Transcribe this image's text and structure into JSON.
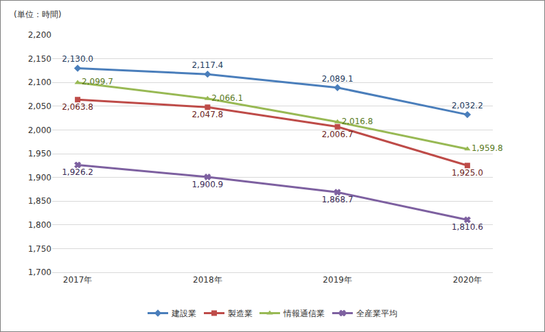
{
  "chart_data": {
    "type": "line",
    "y_label": "(単位：時間)",
    "categories": [
      "2017年",
      "2018年",
      "2019年",
      "2020年"
    ],
    "series": [
      {
        "name": "建設業",
        "color": "#4a7ebb",
        "marker": "diamond",
        "values": [
          2130.0,
          2117.4,
          2089.1,
          2032.2
        ],
        "value_labels": [
          "2,130.0",
          "2,117.4",
          "2,089.1",
          "2,032.2"
        ]
      },
      {
        "name": "製造業",
        "color": "#be4b48",
        "marker": "square",
        "values": [
          2063.8,
          2047.8,
          2006.7,
          1925.0
        ],
        "value_labels": [
          "2,063.8",
          "2,047.8",
          "2,006.7",
          "1,925.0"
        ]
      },
      {
        "name": "情報通信業",
        "color": "#98b954",
        "marker": "triangle-up",
        "values": [
          2099.7,
          2066.1,
          2016.8,
          1959.8
        ],
        "value_labels": [
          "2,099.7",
          "2,066.1",
          "2,016.8",
          "1,959.8"
        ]
      },
      {
        "name": "全産業平均",
        "color": "#7d60a0",
        "marker": "x",
        "values": [
          1926.2,
          1900.9,
          1868.7,
          1810.6
        ],
        "value_labels": [
          "1,926.2",
          "1,900.9",
          "1,868.7",
          "1,810.6"
        ]
      }
    ],
    "ylim": [
      1700,
      2200
    ],
    "yticks": [
      {
        "value": 1700,
        "label": "1,700"
      },
      {
        "value": 1750,
        "label": "1,750"
      },
      {
        "value": 1800,
        "label": "1,800"
      },
      {
        "value": 1850,
        "label": "1,850"
      },
      {
        "value": 1900,
        "label": "1,900"
      },
      {
        "value": 1950,
        "label": "1,950"
      },
      {
        "value": 2000,
        "label": "2,000"
      },
      {
        "value": 2050,
        "label": "2,050"
      },
      {
        "value": 2100,
        "label": "2,100"
      },
      {
        "value": 2150,
        "label": "2,150"
      },
      {
        "value": 2200,
        "label": "2,200"
      }
    ],
    "grid": true,
    "legend": "bottom",
    "data_labels": true
  }
}
